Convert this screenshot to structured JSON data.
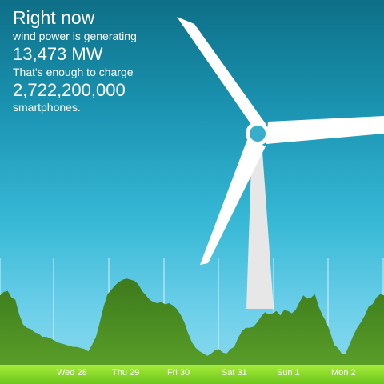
{
  "info": {
    "heading": "Right now",
    "line1": "wind power is generating",
    "power_value": "13,473 MW",
    "line2": "That's enough to charge",
    "phones_value": "2,722,200,000",
    "line3": "smartphones."
  },
  "chart_data": {
    "type": "area",
    "title": "",
    "xlabel": "",
    "ylabel": "",
    "x_tick_labels": [
      "Wed 28",
      "Thu 29",
      "Fri 30",
      "Sat 31",
      "Sun 1",
      "Mon 2"
    ],
    "series": [
      {
        "values": [
          62,
          65,
          66,
          60,
          58,
          45,
          36,
          33,
          32,
          29,
          28,
          25,
          25,
          24,
          22,
          20,
          19,
          18,
          17,
          16,
          16,
          15,
          14,
          12,
          18,
          25,
          38,
          52,
          63,
          67,
          71,
          74,
          76,
          77,
          76,
          75,
          72,
          66,
          62,
          58,
          56,
          55,
          56,
          54,
          55,
          53,
          50,
          45,
          38,
          28,
          20,
          15,
          12,
          10,
          8,
          10,
          13,
          14,
          11,
          10,
          14,
          16,
          24,
          30,
          33,
          33,
          34,
          38,
          43,
          47,
          45,
          46,
          48,
          44,
          49,
          48,
          46,
          49,
          56,
          62,
          59,
          60,
          63,
          52,
          44,
          38,
          29,
          18,
          15,
          10,
          10,
          18,
          26,
          33,
          38,
          44,
          52,
          54,
          60,
          63,
          62
        ]
      }
    ],
    "colors": {
      "area_top": "#3d7a1c",
      "area_bottom": "#589d28",
      "ground": "#7ed321",
      "sky_top": "#0e6f87",
      "sky_bottom": "#8fdcef"
    }
  },
  "turbine": {
    "blade_color": "#ffffff",
    "tower_color": "#e6e6e6"
  }
}
